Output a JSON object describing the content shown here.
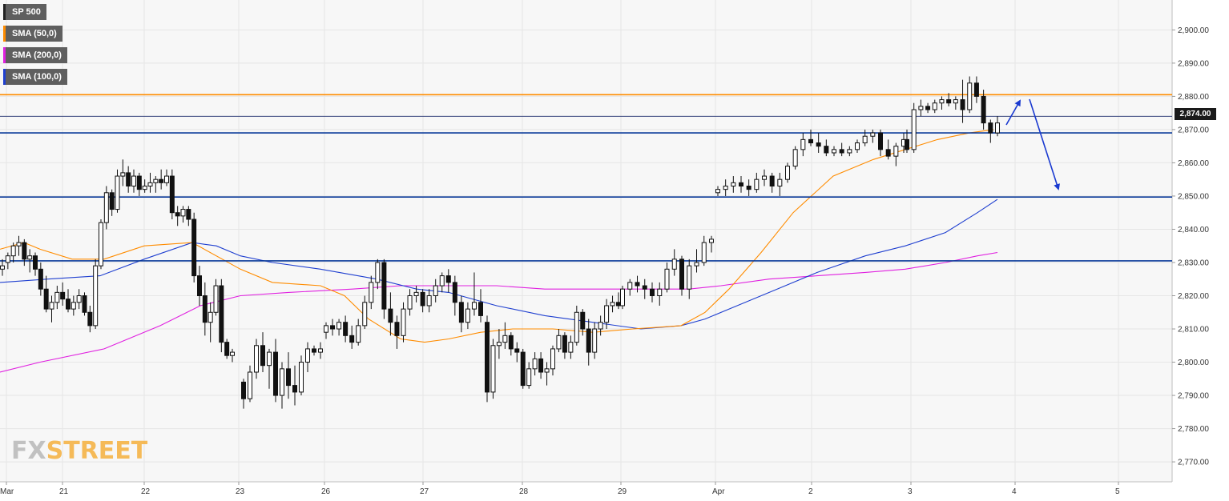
{
  "legend": [
    {
      "label": "SP 500",
      "color": "#222222"
    },
    {
      "label": "SMA (50,0)",
      "color": "#ff8c00"
    },
    {
      "label": "SMA (200,0)",
      "color": "#e020e0"
    },
    {
      "label": "SMA (100,0)",
      "color": "#2040d0"
    }
  ],
  "price_badge": "2,874.00",
  "logo": {
    "part1": "FX",
    "part2": "STREET"
  },
  "chart_data": {
    "type": "candlestick",
    "title": "",
    "xlabel": "",
    "ylabel": "",
    "ylim": [
      2764,
      2909
    ],
    "y_ticks": [
      {
        "value": 2770,
        "label": "2,770.00"
      },
      {
        "value": 2780,
        "label": "2,780.00"
      },
      {
        "value": 2790,
        "label": "2,790.00"
      },
      {
        "value": 2800,
        "label": "2,800.00"
      },
      {
        "value": 2810,
        "label": "2,810.00"
      },
      {
        "value": 2820,
        "label": "2,820.00"
      },
      {
        "value": 2830,
        "label": "2,830.00"
      },
      {
        "value": 2840,
        "label": "2,840.00"
      },
      {
        "value": 2850,
        "label": "2,850.00"
      },
      {
        "value": 2860,
        "label": "2,860.00"
      },
      {
        "value": 2870,
        "label": "2,870.00"
      },
      {
        "value": 2880,
        "label": "2,880.00"
      },
      {
        "value": 2890,
        "label": "2,890.00"
      },
      {
        "value": 2900,
        "label": "2,900.00"
      }
    ],
    "x_ticks": [
      {
        "label": "Mar",
        "t": 0
      },
      {
        "label": "21",
        "t": 1
      },
      {
        "label": "22",
        "t": 2
      },
      {
        "label": "23",
        "t": 3
      },
      {
        "label": "26",
        "t": 4
      },
      {
        "label": "27",
        "t": 5
      },
      {
        "label": "28",
        "t": 6
      },
      {
        "label": "29",
        "t": 7
      },
      {
        "label": "Apr",
        "t": 8
      },
      {
        "label": "2",
        "t": 9
      },
      {
        "label": "3",
        "t": 10
      },
      {
        "label": "4",
        "t": 11
      },
      {
        "label": "5",
        "t": 12
      }
    ],
    "horizontal_levels": [
      {
        "value": 2880.5,
        "color": "#ff8c00"
      },
      {
        "value": 2869,
        "color": "#0a3a9a"
      },
      {
        "value": 2849.7,
        "color": "#0a3a9a"
      },
      {
        "value": 2830.5,
        "color": "#0a3a9a"
      }
    ],
    "current_price": 2874,
    "candles": [
      [
        2828,
        2831,
        2826,
        2829
      ],
      [
        2830,
        2833,
        2828,
        2832
      ],
      [
        2832,
        2836,
        2830,
        2835
      ],
      [
        2835,
        2838,
        2832,
        2836
      ],
      [
        2836,
        2837,
        2829,
        2831
      ],
      [
        2831,
        2834,
        2827,
        2832
      ],
      [
        2832,
        2833,
        2826,
        2828
      ],
      [
        2828,
        2830,
        2820,
        2822
      ],
      [
        2822,
        2826,
        2815,
        2816
      ],
      [
        2816,
        2820,
        2812,
        2818
      ],
      [
        2818,
        2823,
        2816,
        2821
      ],
      [
        2821,
        2824,
        2817,
        2819
      ],
      [
        2819,
        2822,
        2815,
        2816
      ],
      [
        2816,
        2820,
        2814,
        2818
      ],
      [
        2818,
        2822,
        2816,
        2820
      ],
      [
        2820,
        2821,
        2814,
        2815
      ],
      [
        2815,
        2817,
        2809,
        2811
      ],
      [
        2811,
        2831,
        2810,
        2829
      ],
      [
        2829,
        2843,
        2828,
        2842
      ],
      [
        2842,
        2853,
        2840,
        2851
      ],
      [
        2851,
        2852,
        2844,
        2846
      ],
      [
        2846,
        2858,
        2845,
        2856
      ],
      [
        2856,
        2861,
        2853,
        2857
      ],
      [
        2857,
        2859,
        2851,
        2853
      ],
      [
        2853,
        2858,
        2851,
        2856
      ],
      [
        2856,
        2857,
        2850,
        2852
      ],
      [
        2852,
        2855,
        2851,
        2853
      ],
      [
        2853,
        2857,
        2851,
        2854
      ],
      [
        2854,
        2856,
        2851,
        2855
      ],
      [
        2855,
        2858,
        2852,
        2854
      ],
      [
        2854,
        2858,
        2853,
        2856
      ],
      [
        2856,
        2858,
        2843,
        2845
      ],
      [
        2845,
        2847,
        2841,
        2844
      ],
      [
        2844,
        2847,
        2842,
        2846
      ],
      [
        2846,
        2847,
        2841,
        2843
      ],
      [
        2843,
        2845,
        2824,
        2826
      ],
      [
        2826,
        2829,
        2817,
        2820
      ],
      [
        2820,
        2824,
        2808,
        2812
      ],
      [
        2812,
        2818,
        2806,
        2815
      ],
      [
        2815,
        2825,
        2814,
        2823
      ],
      [
        2823,
        2825,
        2803,
        2806
      ],
      [
        2806,
        2807,
        2801,
        2802
      ],
      [
        2802,
        2804,
        2800,
        2803
      ],
      [
        2794,
        2795,
        2786,
        2789
      ],
      [
        2789,
        2799,
        2788,
        2797
      ],
      [
        2797,
        2807,
        2795,
        2805
      ],
      [
        2805,
        2809,
        2797,
        2799
      ],
      [
        2799,
        2804,
        2792,
        2803
      ],
      [
        2803,
        2807,
        2788,
        2790
      ],
      [
        2790,
        2800,
        2786,
        2798
      ],
      [
        2798,
        2803,
        2789,
        2793
      ],
      [
        2793,
        2799,
        2787,
        2791
      ],
      [
        2791,
        2802,
        2790,
        2800
      ],
      [
        2800,
        2806,
        2797,
        2804
      ],
      [
        2804,
        2805,
        2802,
        2803
      ],
      [
        2803,
        2806,
        2801,
        2804
      ],
      [
        2809,
        2812,
        2807,
        2811
      ],
      [
        2811,
        2813,
        2808,
        2810
      ],
      [
        2810,
        2813,
        2808,
        2812
      ],
      [
        2812,
        2814,
        2806,
        2808
      ],
      [
        2808,
        2811,
        2804,
        2806
      ],
      [
        2806,
        2813,
        2805,
        2811
      ],
      [
        2811,
        2820,
        2810,
        2818
      ],
      [
        2818,
        2826,
        2816,
        2824
      ],
      [
        2824,
        2831,
        2822,
        2830
      ],
      [
        2830,
        2831,
        2813,
        2816
      ],
      [
        2816,
        2821,
        2808,
        2812
      ],
      [
        2812,
        2814,
        2804,
        2808
      ],
      [
        2808,
        2818,
        2806,
        2816
      ],
      [
        2816,
        2822,
        2814,
        2820
      ],
      [
        2820,
        2823,
        2818,
        2821
      ],
      [
        2821,
        2822,
        2815,
        2817
      ],
      [
        2817,
        2822,
        2815,
        2820
      ],
      [
        2820,
        2825,
        2818,
        2823
      ],
      [
        2823,
        2827,
        2821,
        2826
      ],
      [
        2826,
        2828,
        2821,
        2824
      ],
      [
        2824,
        2826,
        2814,
        2818
      ],
      [
        2818,
        2820,
        2809,
        2812
      ],
      [
        2812,
        2818,
        2810,
        2816
      ],
      [
        2816,
        2827,
        2814,
        2818
      ],
      [
        2818,
        2822,
        2812,
        2814
      ],
      [
        2812,
        2814,
        2788,
        2791
      ],
      [
        2791,
        2807,
        2789,
        2805
      ],
      [
        2805,
        2810,
        2801,
        2806
      ],
      [
        2806,
        2812,
        2804,
        2808
      ],
      [
        2808,
        2809,
        2802,
        2804
      ],
      [
        2804,
        2806,
        2800,
        2803
      ],
      [
        2803,
        2804,
        2792,
        2793
      ],
      [
        2793,
        2800,
        2792,
        2798
      ],
      [
        2798,
        2803,
        2796,
        2801
      ],
      [
        2801,
        2803,
        2795,
        2797
      ],
      [
        2797,
        2800,
        2793,
        2798
      ],
      [
        2798,
        2805,
        2796,
        2804
      ],
      [
        2804,
        2810,
        2803,
        2808
      ],
      [
        2808,
        2809,
        2801,
        2803
      ],
      [
        2803,
        2808,
        2801,
        2806
      ],
      [
        2806,
        2817,
        2805,
        2815
      ],
      [
        2815,
        2816,
        2808,
        2810
      ],
      [
        2810,
        2813,
        2799,
        2803
      ],
      [
        2803,
        2812,
        2801,
        2810
      ],
      [
        2810,
        2814,
        2808,
        2812
      ],
      [
        2812,
        2819,
        2810,
        2817
      ],
      [
        2817,
        2820,
        2815,
        2818
      ],
      [
        2818,
        2821,
        2816,
        2817
      ],
      [
        2817,
        2823,
        2816,
        2822
      ],
      [
        2822,
        2825,
        2820,
        2824
      ],
      [
        2824,
        2826,
        2821,
        2823
      ],
      [
        2823,
        2825,
        2819,
        2822
      ],
      [
        2822,
        2824,
        2818,
        2820
      ],
      [
        2820,
        2824,
        2817,
        2822
      ],
      [
        2822,
        2830,
        2821,
        2828
      ],
      [
        2828,
        2834,
        2826,
        2831
      ],
      [
        2831,
        2832,
        2820,
        2822
      ],
      [
        2822,
        2831,
        2819,
        2829
      ],
      [
        2829,
        2834,
        2827,
        2830
      ],
      [
        2830,
        2838,
        2829,
        2836
      ],
      [
        2836,
        2838,
        2833,
        2837
      ],
      [
        2851,
        2853,
        2850,
        2852
      ],
      [
        2852,
        2855,
        2850,
        2853
      ],
      [
        2853,
        2856,
        2851,
        2854
      ],
      [
        2854,
        2856,
        2851,
        2853
      ],
      [
        2853,
        2855,
        2850,
        2852
      ],
      [
        2852,
        2857,
        2851,
        2855
      ],
      [
        2855,
        2858,
        2853,
        2856
      ],
      [
        2856,
        2857,
        2851,
        2853
      ],
      [
        2853,
        2857,
        2850,
        2855
      ],
      [
        2855,
        2860,
        2854,
        2859
      ],
      [
        2859,
        2865,
        2858,
        2864
      ],
      [
        2864,
        2869,
        2862,
        2867
      ],
      [
        2867,
        2870,
        2865,
        2866
      ],
      [
        2866,
        2869,
        2863,
        2865
      ],
      [
        2865,
        2867,
        2862,
        2863
      ],
      [
        2863,
        2865,
        2862,
        2864
      ],
      [
        2864,
        2866,
        2862,
        2863
      ],
      [
        2863,
        2865,
        2862,
        2864
      ],
      [
        2864,
        2867,
        2863,
        2866
      ],
      [
        2866,
        2870,
        2865,
        2868
      ],
      [
        2868,
        2870,
        2866,
        2869
      ],
      [
        2869,
        2870,
        2862,
        2864
      ],
      [
        2864,
        2867,
        2861,
        2862
      ],
      [
        2862,
        2866,
        2859,
        2865
      ],
      [
        2865,
        2869,
        2863,
        2867
      ],
      [
        2867,
        2870,
        2863,
        2864
      ],
      [
        2864,
        2878,
        2863,
        2876
      ],
      [
        2876,
        2879,
        2874,
        2877
      ],
      [
        2877,
        2878,
        2875,
        2876
      ],
      [
        2876,
        2879,
        2875,
        2878
      ],
      [
        2878,
        2880,
        2876,
        2879
      ],
      [
        2879,
        2881,
        2877,
        2878
      ],
      [
        2878,
        2880,
        2876,
        2879
      ],
      [
        2879,
        2885,
        2872,
        2876
      ],
      [
        2876,
        2886,
        2875,
        2884
      ],
      [
        2884,
        2886,
        2878,
        2880
      ],
      [
        2880,
        2882,
        2870,
        2872
      ],
      [
        2872,
        2873,
        2866,
        2869
      ],
      [
        2869,
        2874,
        2868,
        2872
      ]
    ],
    "sma50": [
      [
        0,
        2834
      ],
      [
        30,
        2836
      ],
      [
        50,
        2834
      ],
      [
        90,
        2831
      ],
      [
        130,
        2831
      ],
      [
        180,
        2835
      ],
      [
        240,
        2836
      ],
      [
        300,
        2828
      ],
      [
        340,
        2824
      ],
      [
        400,
        2823
      ],
      [
        430,
        2820
      ],
      [
        460,
        2813
      ],
      [
        500,
        2807
      ],
      [
        530,
        2806
      ],
      [
        560,
        2807
      ],
      [
        600,
        2809
      ],
      [
        640,
        2810
      ],
      [
        690,
        2810
      ],
      [
        740,
        2809
      ],
      [
        790,
        2810
      ],
      [
        850,
        2811
      ],
      [
        880,
        2815
      ],
      [
        910,
        2822
      ],
      [
        950,
        2833
      ],
      [
        990,
        2845
      ],
      [
        1040,
        2856
      ],
      [
        1090,
        2861
      ],
      [
        1130,
        2864
      ],
      [
        1170,
        2867
      ],
      [
        1210,
        2869
      ],
      [
        1240,
        2870
      ]
    ],
    "sma100": [
      [
        0,
        2824
      ],
      [
        60,
        2825
      ],
      [
        125,
        2826
      ],
      [
        180,
        2831
      ],
      [
        240,
        2836
      ],
      [
        270,
        2835
      ],
      [
        300,
        2832
      ],
      [
        340,
        2830
      ],
      [
        400,
        2828
      ],
      [
        470,
        2825
      ],
      [
        520,
        2822
      ],
      [
        560,
        2821
      ],
      [
        620,
        2817
      ],
      [
        680,
        2814
      ],
      [
        740,
        2812
      ],
      [
        800,
        2810
      ],
      [
        850,
        2811
      ],
      [
        880,
        2813
      ],
      [
        920,
        2817
      ],
      [
        970,
        2822
      ],
      [
        1020,
        2827
      ],
      [
        1080,
        2832
      ],
      [
        1130,
        2835
      ],
      [
        1180,
        2839
      ],
      [
        1220,
        2845
      ],
      [
        1245,
        2849
      ]
    ],
    "sma200": [
      [
        0,
        2797
      ],
      [
        50,
        2800
      ],
      [
        130,
        2804
      ],
      [
        200,
        2811
      ],
      [
        250,
        2817
      ],
      [
        300,
        2820
      ],
      [
        360,
        2821
      ],
      [
        440,
        2822
      ],
      [
        500,
        2823
      ],
      [
        560,
        2823
      ],
      [
        620,
        2823
      ],
      [
        680,
        2822
      ],
      [
        740,
        2822
      ],
      [
        810,
        2822
      ],
      [
        860,
        2822
      ],
      [
        900,
        2823
      ],
      [
        960,
        2825
      ],
      [
        1020,
        2826
      ],
      [
        1080,
        2827
      ],
      [
        1130,
        2828
      ],
      [
        1180,
        2830
      ],
      [
        1220,
        2832
      ],
      [
        1245,
        2833
      ]
    ]
  }
}
